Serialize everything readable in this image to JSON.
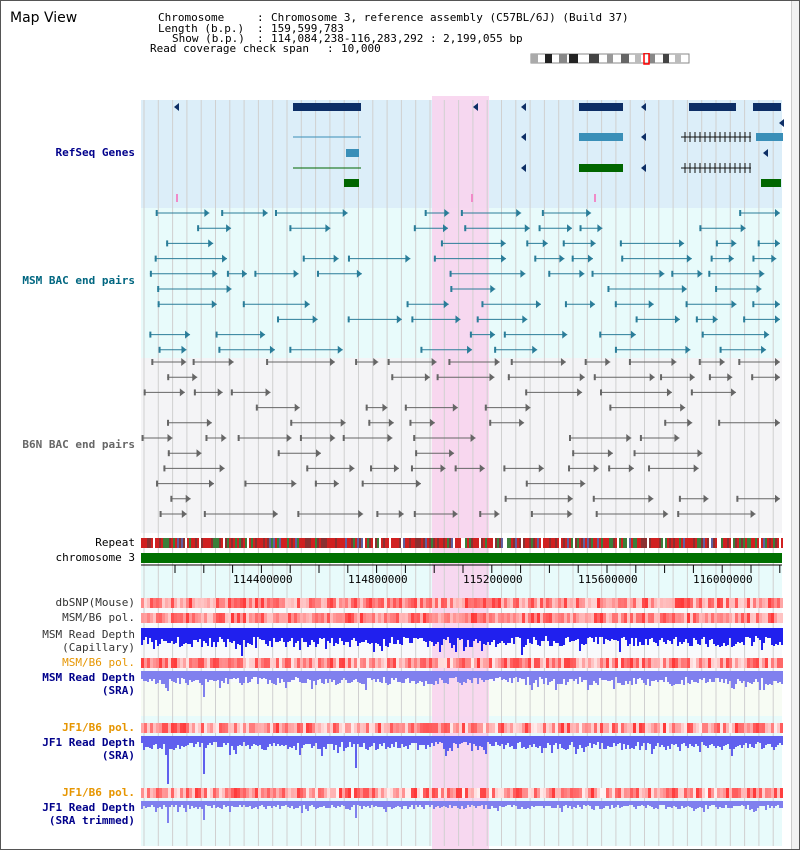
{
  "view_title": "Map View",
  "info": {
    "chromosome_label": "Chromosome",
    "chromosome_value": "Chromosome 3, reference assembly (C57BL/6J) (Build 37)",
    "length_label": "Length (b.p.)",
    "length_value": "159,599,783",
    "show_label": "Show (b.p.)",
    "show_value": "114,084,238-116,283,292 : 2,199,055 bp",
    "coverage_label": "Read coverage check span",
    "coverage_value": "10,000"
  },
  "tracks": {
    "refseq": "RefSeq Genes",
    "msm_bac": "MSM BAC end pairs",
    "b6n_bac": "B6N BAC end pairs",
    "repeat": "Repeat",
    "chromosome": "chromosome 3",
    "dbsnp": "dbSNP(Mouse)",
    "msm_b6_pol_1": "MSM/B6 pol.",
    "msm_depth_cap_1": "MSM Read Depth",
    "msm_depth_cap_2": "(Capillary)",
    "msm_b6_pol_2": "MSM/B6 pol.",
    "msm_depth_sra_1": "MSM Read Depth",
    "msm_depth_sra_2": "(SRA)",
    "jf1_b6_pol_1": "JF1/B6 pol.",
    "jf1_depth_sra_1": "JF1 Read Depth",
    "jf1_depth_sra_2": "(SRA)",
    "jf1_b6_pol_2": "JF1/B6 pol.",
    "jf1_depth_trim_1": "JF1 Read Depth",
    "jf1_depth_trim_2": "(SRA trimmed)"
  },
  "axis_ticks": [
    "114400000",
    "114800000",
    "115200000",
    "115600000",
    "116000000"
  ],
  "colors": {
    "refseq_bg": "#dceef9",
    "msm_bg": "#e8fbfb",
    "b6n_bg": "#f4f4f6",
    "highlight": "#f8d4ee",
    "chrom_green": "#007000",
    "depth_blue": "#3333ff",
    "depth_light": "#8888ee",
    "label_blue": "#00008b",
    "label_teal": "#006680",
    "label_orange": "#e69500",
    "snp_red": "#ff2020"
  }
}
